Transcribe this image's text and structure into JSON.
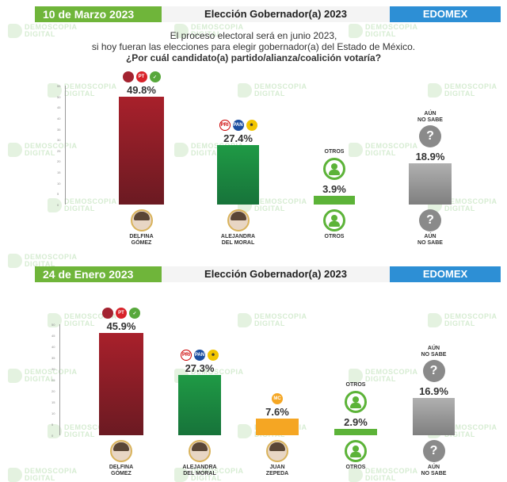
{
  "question": {
    "line1": "El proceso electoral será en junio 2023,",
    "line2": "si hoy fueran las elecciones para elegir gobernador(a) del Estado de México.",
    "line3": "¿Por cuál candidato(a) partido/alianza/coalición votaría?"
  },
  "watermark": {
    "line1": "DEMOSCOPIA",
    "line2": "DIGITAL"
  },
  "colors": {
    "morena": "#8b1d24",
    "pri_alliance": "#1f8a3b",
    "mc": "#f5a623",
    "otros": "#5cb338",
    "no_sabe": "#9a9a9a",
    "header_green": "#6fb53a",
    "header_blue": "#2d8fd5"
  },
  "chart_data": [
    {
      "type": "bar",
      "date": "10 de Marzo 2023",
      "heading": "Elección Gobernador(a) 2023",
      "state": "EDOMEX",
      "categories": [
        "DELFINA GÓMEZ",
        "ALEJANDRA DEL MORAL",
        "OTROS",
        "AÚN NO SABE"
      ],
      "values": [
        49.8,
        27.4,
        3.9,
        18.9
      ],
      "labels": [
        "49.8%",
        "27.4%",
        "3.9%",
        "18.9%"
      ],
      "ylim": [
        0,
        55
      ],
      "bars": [
        {
          "name1": "DELFINA",
          "name2": "GÓMEZ",
          "logos": [
            "MORENA",
            "PT",
            "PVEM"
          ],
          "icon": "photo-icon"
        },
        {
          "name1": "ALEJANDRA",
          "name2": "DEL MORAL",
          "logos": [
            "PRI",
            "PAN",
            "PRD"
          ],
          "icon": "photo-icon"
        },
        {
          "name1": "OTROS",
          "name2": "",
          "top1": "OTROS",
          "top2": "",
          "icon": "person-icon"
        },
        {
          "name1": "AÚN",
          "name2": "NO SABE",
          "top1": "AÚN",
          "top2": "NO SABE",
          "icon": "question-icon"
        }
      ]
    },
    {
      "type": "bar",
      "date": "24 de Enero 2023",
      "heading": "Elección Gobernador(a) 2023",
      "state": "EDOMEX",
      "categories": [
        "DELFINA GÓMEZ",
        "ALEJANDRA DEL MORAL",
        "JUAN ZEPEDA",
        "OTROS",
        "AÚN NO SABE"
      ],
      "values": [
        45.9,
        27.3,
        7.6,
        2.9,
        16.9
      ],
      "labels": [
        "45.9%",
        "27.3%",
        "7.6%",
        "2.9%",
        "16.9%"
      ],
      "ylim": [
        0,
        50
      ],
      "bars": [
        {
          "name1": "DELFINA",
          "name2": "GÓMEZ",
          "logos": [
            "MORENA",
            "PT",
            "PVEM"
          ],
          "icon": "photo-icon"
        },
        {
          "name1": "ALEJANDRA",
          "name2": "DEL MORAL",
          "logos": [
            "PRI",
            "PAN",
            "PRD"
          ],
          "icon": "photo-icon"
        },
        {
          "name1": "JUAN",
          "name2": "ZEPEDA",
          "logos": [
            "MC"
          ],
          "icon": "photo-icon"
        },
        {
          "name1": "OTROS",
          "name2": "",
          "top1": "OTROS",
          "top2": "",
          "icon": "person-icon"
        },
        {
          "name1": "AÚN",
          "name2": "NO SABE",
          "top1": "AÚN",
          "top2": "NO SABE",
          "icon": "question-icon"
        }
      ]
    }
  ]
}
